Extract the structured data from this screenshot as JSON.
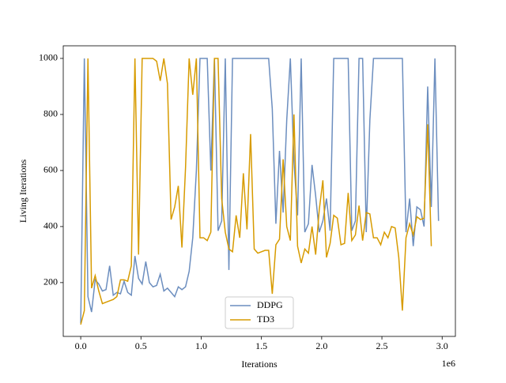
{
  "chart_data": {
    "type": "line",
    "xlabel": "Iterations",
    "ylabel": "Living Iterations",
    "x_offset_label": "1e6",
    "x": [
      0,
      0.03,
      0.06,
      0.09,
      0.12,
      0.15,
      0.18,
      0.21,
      0.24,
      0.27,
      0.3,
      0.33,
      0.36,
      0.39,
      0.42,
      0.45,
      0.48,
      0.51,
      0.54,
      0.57,
      0.6,
      0.63,
      0.66,
      0.69,
      0.72,
      0.75,
      0.78,
      0.81,
      0.84,
      0.87,
      0.9,
      0.93,
      0.96,
      0.99,
      1.02,
      1.05,
      1.08,
      1.11,
      1.14,
      1.17,
      1.2,
      1.23,
      1.26,
      1.29,
      1.32,
      1.35,
      1.38,
      1.41,
      1.44,
      1.47,
      1.5,
      1.53,
      1.56,
      1.59,
      1.62,
      1.65,
      1.68,
      1.71,
      1.74,
      1.77,
      1.8,
      1.83,
      1.86,
      1.89,
      1.92,
      1.95,
      1.98,
      2.01,
      2.04,
      2.07,
      2.1,
      2.13,
      2.16,
      2.19,
      2.22,
      2.25,
      2.28,
      2.31,
      2.34,
      2.37,
      2.4,
      2.43,
      2.46,
      2.49,
      2.52,
      2.55,
      2.58,
      2.61,
      2.64,
      2.67,
      2.7,
      2.73,
      2.76,
      2.79,
      2.82,
      2.85,
      2.88,
      2.91,
      2.94,
      2.97
    ],
    "series": [
      {
        "name": "DDPG",
        "color": "#6c8ebf",
        "values": [
          55,
          1000,
          150,
          95,
          210,
          195,
          170,
          175,
          260,
          155,
          165,
          160,
          205,
          165,
          155,
          295,
          215,
          195,
          275,
          200,
          185,
          190,
          230,
          170,
          180,
          165,
          150,
          185,
          175,
          185,
          240,
          360,
          600,
          1000,
          1000,
          1000,
          600,
          1000,
          385,
          420,
          1000,
          245,
          1000,
          1000,
          1000,
          1000,
          1000,
          1000,
          1000,
          1000,
          1000,
          1000,
          1000,
          820,
          410,
          670,
          450,
          780,
          1000,
          630,
          440,
          1000,
          380,
          410,
          620,
          510,
          380,
          420,
          500,
          385,
          1000,
          1000,
          1000,
          1000,
          1000,
          385,
          420,
          1000,
          1000,
          380,
          780,
          1000,
          1000,
          1000,
          1000,
          1000,
          1000,
          1000,
          1000,
          1000,
          380,
          500,
          330,
          470,
          460,
          400,
          900,
          470,
          1000,
          420
        ]
      },
      {
        "name": "TD3",
        "color": "#d79b00",
        "values": [
          50,
          100,
          1000,
          180,
          225,
          170,
          125,
          130,
          135,
          140,
          150,
          210,
          210,
          205,
          260,
          1000,
          300,
          1000,
          1000,
          1000,
          1000,
          990,
          920,
          1000,
          910,
          425,
          470,
          545,
          325,
          610,
          1000,
          870,
          1000,
          360,
          360,
          350,
          380,
          1000,
          1000,
          500,
          380,
          320,
          310,
          440,
          360,
          590,
          390,
          730,
          320,
          305,
          310,
          315,
          315,
          160,
          335,
          355,
          640,
          400,
          350,
          800,
          330,
          270,
          320,
          305,
          400,
          300,
          460,
          565,
          290,
          340,
          440,
          430,
          335,
          340,
          520,
          350,
          370,
          475,
          350,
          450,
          445,
          360,
          360,
          335,
          380,
          360,
          400,
          395,
          290,
          100,
          360,
          410,
          370,
          435,
          425,
          430,
          765,
          330,
          null,
          null
        ]
      }
    ],
    "xlim": [
      -0.145,
      3.11
    ],
    "ylim": [
      8,
      1045
    ],
    "xticks": [
      {
        "value": 0,
        "label": "0.0"
      },
      0.5,
      {
        "value": 1,
        "label": "1.0"
      },
      1.5,
      {
        "value": 2,
        "label": "2.0"
      },
      2.5,
      {
        "value": 3,
        "label": "3.0"
      }
    ],
    "yticks": [
      200,
      400,
      600,
      800,
      1000
    ],
    "grid": false,
    "legend": "lower center"
  }
}
